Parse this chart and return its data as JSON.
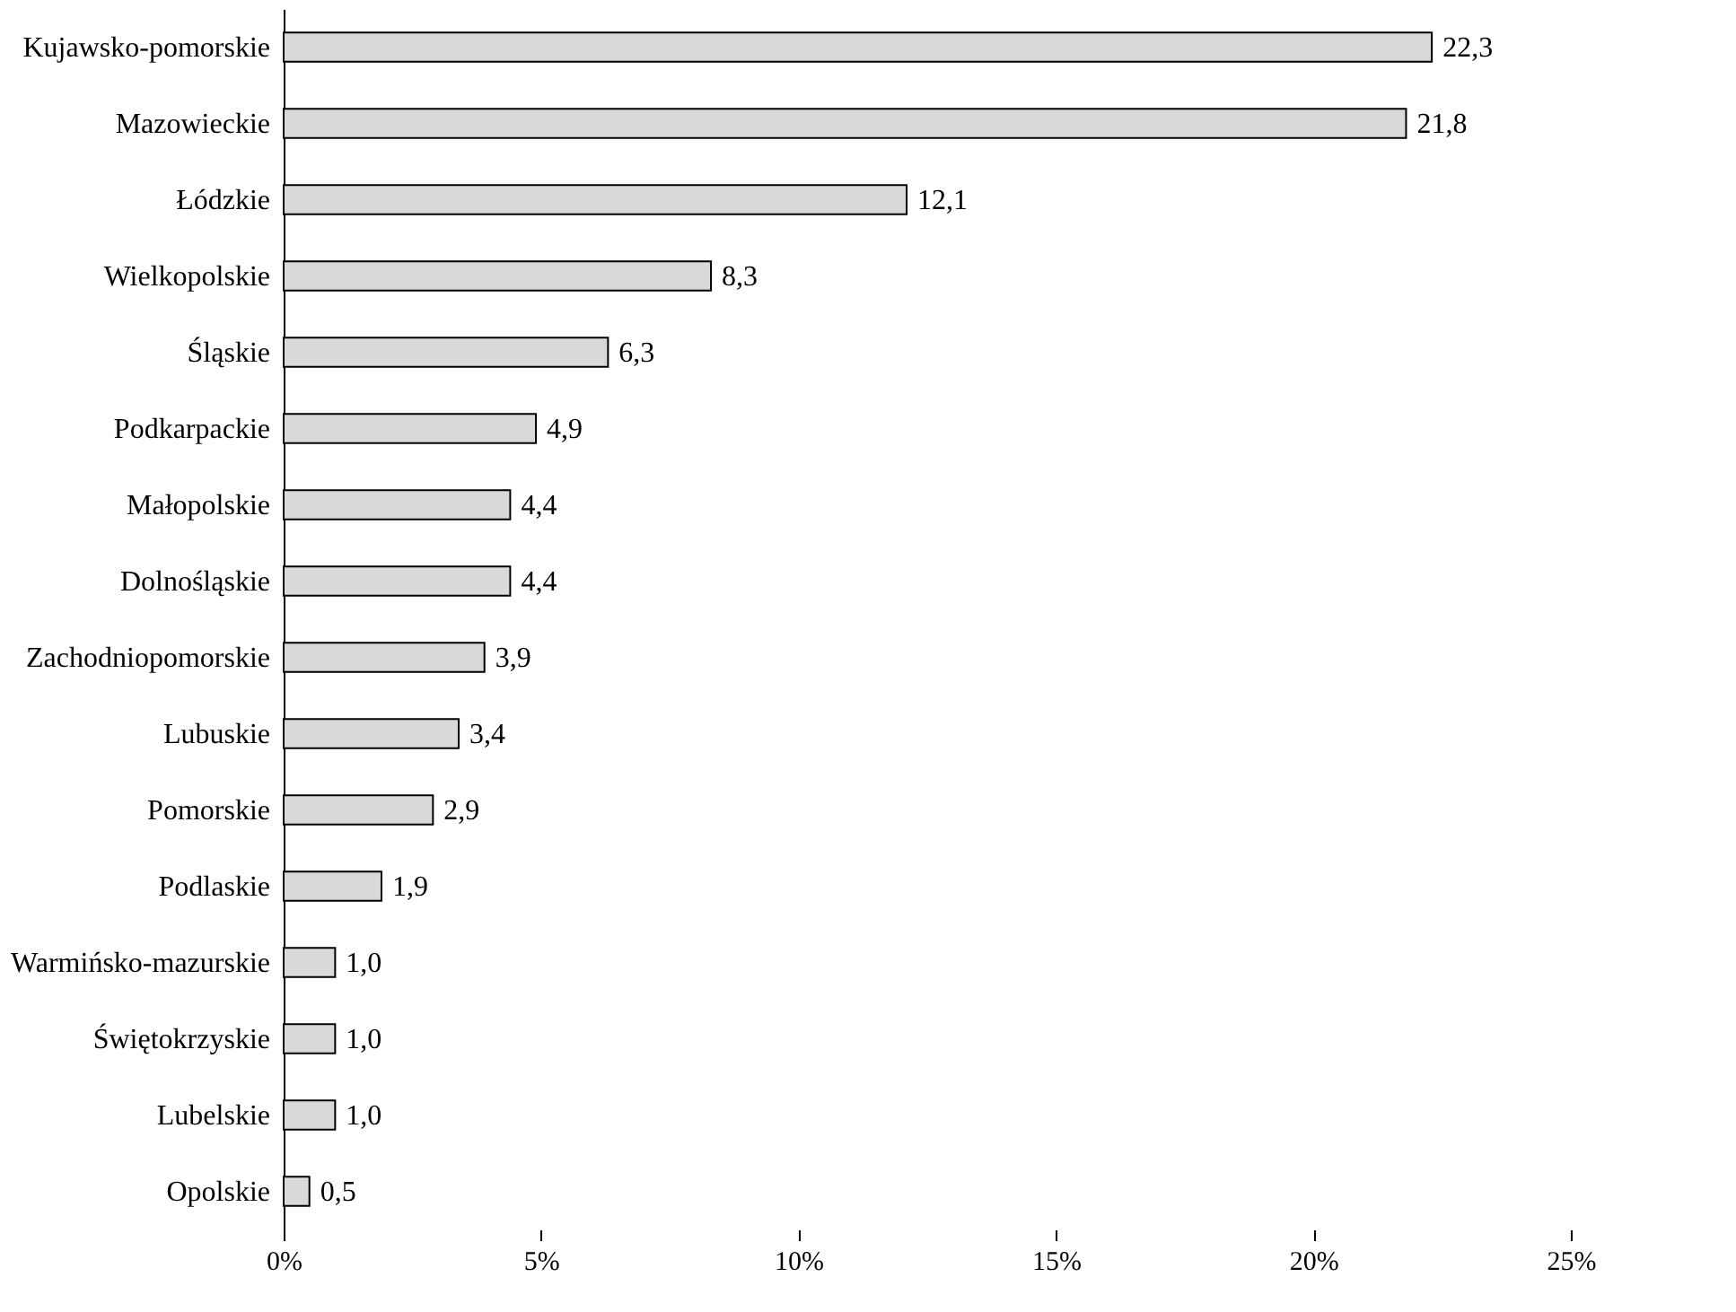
{
  "chart_data": {
    "type": "bar",
    "orientation": "horizontal",
    "categories": [
      "Kujawsko-pomorskie",
      "Mazowieckie",
      "Łódzkie",
      "Wielkopolskie",
      "Śląskie",
      "Podkarpackie",
      "Małopolskie",
      "Dolnośląskie",
      "Zachodniopomorskie",
      "Lubuskie",
      "Pomorskie",
      "Podlaskie",
      "Warmińsko-mazurskie",
      "Świętokrzyskie",
      "Lubelskie",
      "Opolskie"
    ],
    "values": [
      22.3,
      21.8,
      12.1,
      8.3,
      6.3,
      4.9,
      4.4,
      4.4,
      3.9,
      3.4,
      2.9,
      1.9,
      1.0,
      1.0,
      1.0,
      0.5
    ],
    "value_labels": [
      "22,3",
      "21,8",
      "12,1",
      "8,3",
      "6,3",
      "4,9",
      "4,4",
      "4,4",
      "3,9",
      "3,4",
      "2,9",
      "1,9",
      "1,0",
      "1,0",
      "1,0",
      "0,5"
    ],
    "color": "#d9d9d9",
    "xlim": [
      0,
      25
    ],
    "xticks": [
      {
        "value": 0,
        "label": "0%"
      },
      {
        "value": 5,
        "label": "5%"
      },
      {
        "value": 10,
        "label": "10%"
      },
      {
        "value": 15,
        "label": "15%"
      },
      {
        "value": 20,
        "label": "20%"
      },
      {
        "value": 25,
        "label": "25%"
      }
    ],
    "grid": false
  }
}
